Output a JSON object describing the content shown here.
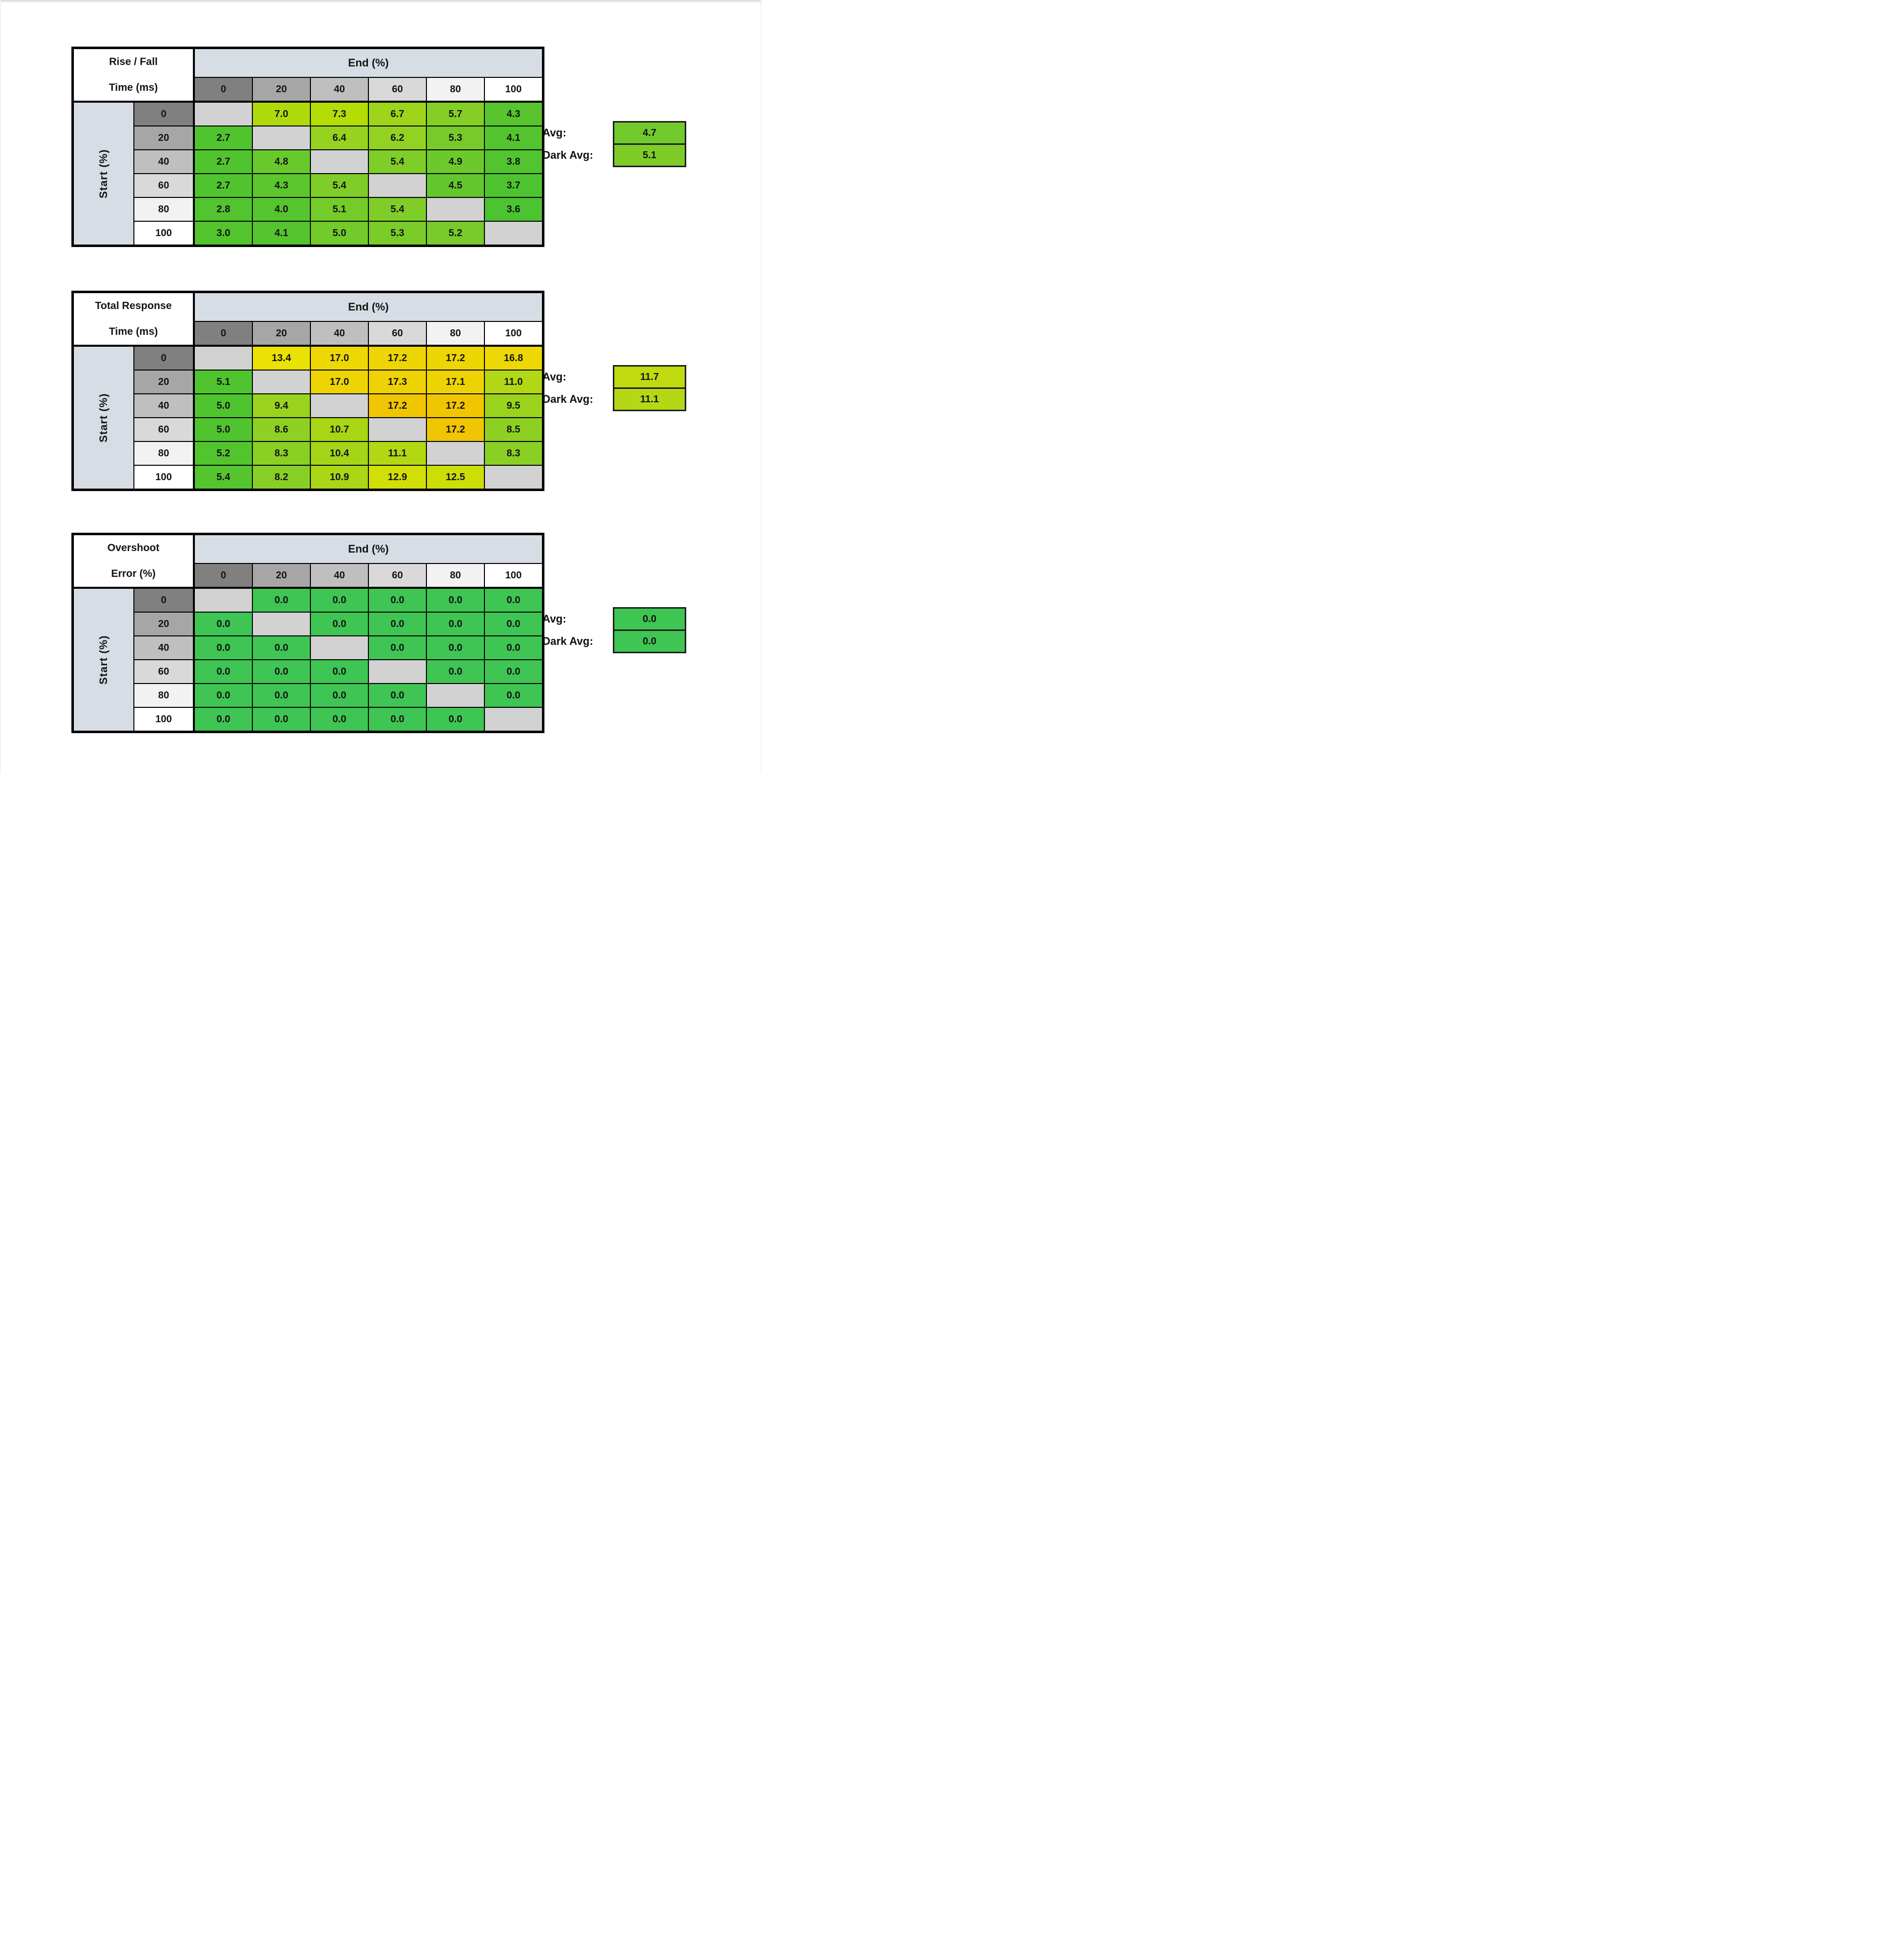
{
  "shared": {
    "end_header": "End (%)",
    "start_label": "Start (%)",
    "avg_label": "Avg:",
    "dark_avg_label": "Dark Avg:",
    "col_headers": [
      "0",
      "20",
      "40",
      "60",
      "80",
      "100"
    ],
    "row_headers": [
      "0",
      "20",
      "40",
      "60",
      "80",
      "100"
    ],
    "header_shades": [
      "#808080",
      "#A6A6A6",
      "#BFBFBF",
      "#D9D9D9",
      "#F2F2F2",
      "#FFFFFF"
    ],
    "band_color": "#D7DDE5",
    "diagonal_color": "#D2D2D2",
    "border_color": "#000000"
  },
  "tables": [
    {
      "id": "rise-fall-time",
      "title_line1": "Rise / Fall",
      "title_line2": "Time (ms)",
      "avg": {
        "value": "4.7",
        "color": "#72C92C"
      },
      "dark_avg": {
        "value": "5.1",
        "color": "#7FCC28"
      },
      "values": [
        [
          null,
          "7.0",
          "7.3",
          "6.7",
          "5.7",
          "4.3"
        ],
        [
          "2.7",
          null,
          "6.4",
          "6.2",
          "5.3",
          "4.1"
        ],
        [
          "2.7",
          "4.8",
          null,
          "5.4",
          "4.9",
          "3.8"
        ],
        [
          "2.7",
          "4.3",
          "5.4",
          null,
          "4.5",
          "3.7"
        ],
        [
          "2.8",
          "4.0",
          "5.1",
          "5.4",
          null,
          "3.6"
        ],
        [
          "3.0",
          "4.1",
          "5.0",
          "5.3",
          "5.2",
          null
        ]
      ],
      "colors": [
        [
          null,
          "#AEDA0D",
          "#B4DC07",
          "#9ED41A",
          "#84CE26",
          "#58C52E"
        ],
        [
          "#50C42F",
          null,
          "#97D220",
          "#93D122",
          "#76CB2A",
          "#54C42E"
        ],
        [
          "#50C42F",
          "#68C92C",
          null,
          "#7FCD28",
          "#6BC92C",
          "#51C42F"
        ],
        [
          "#50C42F",
          "#5CC62D",
          "#7FCD28",
          null,
          "#61C72D",
          "#4EC330"
        ],
        [
          "#51C42F",
          "#57C52E",
          "#74CB2A",
          "#7FCD28",
          null,
          "#4CC330"
        ],
        [
          "#53C42E",
          "#55C42E",
          "#72CA2B",
          "#79CC29",
          "#77CB2A",
          null
        ]
      ]
    },
    {
      "id": "total-response-time",
      "title_line1": "Total Response",
      "title_line2": "Time (ms)",
      "avg": {
        "value": "11.7",
        "color": "#C0DA10"
      },
      "dark_avg": {
        "value": "11.1",
        "color": "#B4D815"
      },
      "values": [
        [
          null,
          "13.4",
          "17.0",
          "17.2",
          "17.2",
          "16.8"
        ],
        [
          "5.1",
          null,
          "17.0",
          "17.3",
          "17.1",
          "11.0"
        ],
        [
          "5.0",
          "9.4",
          null,
          "17.2",
          "17.2",
          "9.5"
        ],
        [
          "5.0",
          "8.6",
          "10.7",
          null,
          "17.2",
          "8.5"
        ],
        [
          "5.2",
          "8.3",
          "10.4",
          "11.1",
          null,
          "8.3"
        ],
        [
          "5.4",
          "8.2",
          "10.9",
          "12.9",
          "12.5",
          null
        ]
      ],
      "colors": [
        [
          null,
          "#EAE204",
          "#EED804",
          "#EED504",
          "#EED504",
          "#EDD704"
        ],
        [
          "#50C42F",
          null,
          "#EED404",
          "#EED204",
          "#EED304",
          "#B2D714"
        ],
        [
          "#4FC42F",
          "#99D31E",
          null,
          "#F0C502",
          "#F0C502",
          "#9AD31E"
        ],
        [
          "#4FC42F",
          "#8ED023",
          "#A8D615",
          null,
          "#F0C502",
          "#8DD023"
        ],
        [
          "#52C42E",
          "#8ACF24",
          "#A4D518",
          "#B2D713",
          null,
          "#8ACF24"
        ],
        [
          "#55C52E",
          "#88CF25",
          "#AAD616",
          "#D2DF06",
          "#CCDE08",
          null
        ]
      ]
    },
    {
      "id": "overshoot-error",
      "title_line1": "Overshoot",
      "title_line2": "Error (%)",
      "avg": {
        "value": "0.0",
        "color": "#3EC553"
      },
      "dark_avg": {
        "value": "0.0",
        "color": "#3EC553"
      },
      "values": [
        [
          null,
          "0.0",
          "0.0",
          "0.0",
          "0.0",
          "0.0"
        ],
        [
          "0.0",
          null,
          "0.0",
          "0.0",
          "0.0",
          "0.0"
        ],
        [
          "0.0",
          "0.0",
          null,
          "0.0",
          "0.0",
          "0.0"
        ],
        [
          "0.0",
          "0.0",
          "0.0",
          null,
          "0.0",
          "0.0"
        ],
        [
          "0.0",
          "0.0",
          "0.0",
          "0.0",
          null,
          "0.0"
        ],
        [
          "0.0",
          "0.0",
          "0.0",
          "0.0",
          "0.0",
          null
        ]
      ],
      "colors": [
        [
          null,
          "#3EC553",
          "#3EC553",
          "#3EC553",
          "#3EC553",
          "#3EC553"
        ],
        [
          "#3EC553",
          null,
          "#3EC553",
          "#3EC553",
          "#3EC553",
          "#3EC553"
        ],
        [
          "#3EC553",
          "#3EC553",
          null,
          "#3EC553",
          "#3EC553",
          "#3EC553"
        ],
        [
          "#3EC553",
          "#3EC553",
          "#3EC553",
          null,
          "#3EC553",
          "#3EC553"
        ],
        [
          "#3EC553",
          "#3EC553",
          "#3EC553",
          "#3EC553",
          null,
          "#3EC553"
        ],
        [
          "#3EC553",
          "#3EC553",
          "#3EC553",
          "#3EC553",
          "#3EC553",
          null
        ]
      ]
    }
  ],
  "chart_data": [
    {
      "type": "heatmap",
      "title": "Rise / Fall Time (ms)",
      "xlabel": "End (%)",
      "ylabel": "Start (%)",
      "x": [
        0,
        20,
        40,
        60,
        80,
        100
      ],
      "y": [
        0,
        20,
        40,
        60,
        80,
        100
      ],
      "values": [
        [
          null,
          7.0,
          7.3,
          6.7,
          5.7,
          4.3
        ],
        [
          2.7,
          null,
          6.4,
          6.2,
          5.3,
          4.1
        ],
        [
          2.7,
          4.8,
          null,
          5.4,
          4.9,
          3.8
        ],
        [
          2.7,
          4.3,
          5.4,
          null,
          4.5,
          3.7
        ],
        [
          2.8,
          4.0,
          5.1,
          5.4,
          null,
          3.6
        ],
        [
          3.0,
          4.1,
          5.0,
          5.3,
          5.2,
          null
        ]
      ],
      "avg": 4.7,
      "dark_avg": 5.1,
      "legend_position": "right"
    },
    {
      "type": "heatmap",
      "title": "Total Response Time (ms)",
      "xlabel": "End (%)",
      "ylabel": "Start (%)",
      "x": [
        0,
        20,
        40,
        60,
        80,
        100
      ],
      "y": [
        0,
        20,
        40,
        60,
        80,
        100
      ],
      "values": [
        [
          null,
          13.4,
          17.0,
          17.2,
          17.2,
          16.8
        ],
        [
          5.1,
          null,
          17.0,
          17.3,
          17.1,
          11.0
        ],
        [
          5.0,
          9.4,
          null,
          17.2,
          17.2,
          9.5
        ],
        [
          5.0,
          8.6,
          10.7,
          null,
          17.2,
          8.5
        ],
        [
          5.2,
          8.3,
          10.4,
          11.1,
          null,
          8.3
        ],
        [
          5.4,
          8.2,
          10.9,
          12.9,
          12.5,
          null
        ]
      ],
      "avg": 11.7,
      "dark_avg": 11.1,
      "legend_position": "right"
    },
    {
      "type": "heatmap",
      "title": "Overshoot Error (%)",
      "xlabel": "End (%)",
      "ylabel": "Start (%)",
      "x": [
        0,
        20,
        40,
        60,
        80,
        100
      ],
      "y": [
        0,
        20,
        40,
        60,
        80,
        100
      ],
      "values": [
        [
          null,
          0.0,
          0.0,
          0.0,
          0.0,
          0.0
        ],
        [
          0.0,
          null,
          0.0,
          0.0,
          0.0,
          0.0
        ],
        [
          0.0,
          0.0,
          null,
          0.0,
          0.0,
          0.0
        ],
        [
          0.0,
          0.0,
          0.0,
          null,
          0.0,
          0.0
        ],
        [
          0.0,
          0.0,
          0.0,
          0.0,
          null,
          0.0
        ],
        [
          0.0,
          0.0,
          0.0,
          0.0,
          0.0,
          null
        ]
      ],
      "avg": 0.0,
      "dark_avg": 0.0,
      "legend_position": "right"
    }
  ]
}
